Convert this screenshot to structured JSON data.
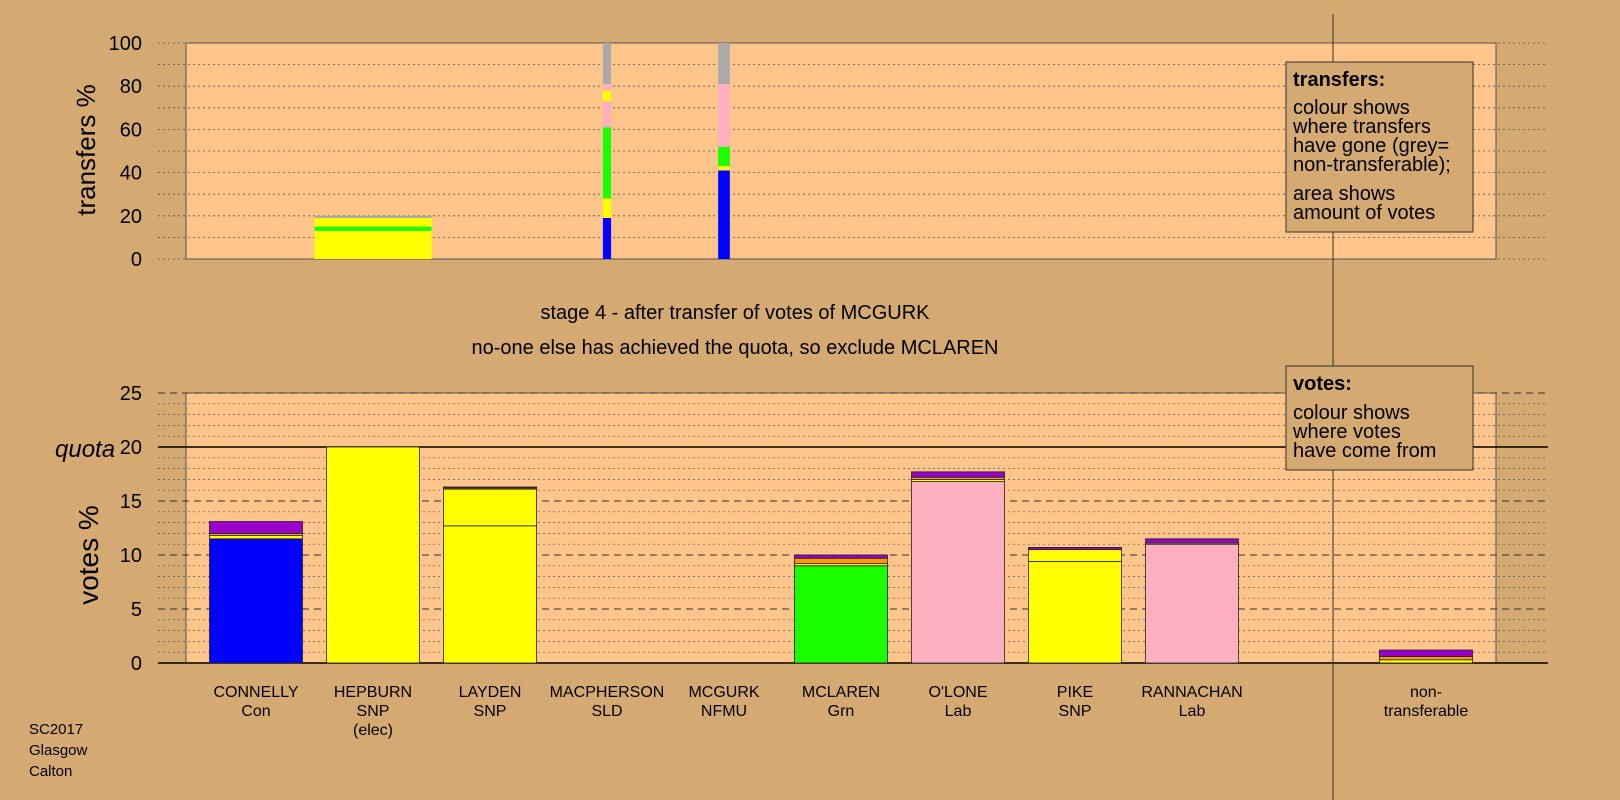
{
  "colors": {
    "background": "#d4a972",
    "plot_area": "#ffc58a",
    "Con": "#0000ff",
    "SNP": "#ffff00",
    "Grn": "#1aff00",
    "Lab": "#ffb0c0",
    "SLD": "#ff9900",
    "NFMU": "#9900cc",
    "nontransferable": "#aaaaaa"
  },
  "stage": {
    "line1": "stage 4 - after transfer of votes of MCGURK",
    "line2": "no-one else has achieved the quota, so exclude MCLAREN"
  },
  "transfer_box": {
    "title": "transfers:",
    "lines": [
      "colour shows",
      "where transfers",
      "have gone (grey=",
      "non-transferable);"
    ],
    "lines2": [
      "area shows",
      "amount of votes"
    ]
  },
  "votes_box": {
    "title": "votes:",
    "lines": [
      "colour shows",
      "where votes",
      "have come from"
    ]
  },
  "quota_label": "quota",
  "footer": [
    "SC2017",
    "Glasgow",
    "Calton"
  ],
  "chart_data": [
    {
      "type": "bar",
      "ylabel": "transfers %",
      "ylim": [
        0,
        100
      ],
      "yticks": [
        0,
        20,
        40,
        60,
        80,
        100
      ],
      "grid": true,
      "categories": [
        "CONNELLY",
        "HEPBURN",
        "LAYDEN",
        "MACPHERSON",
        "MCGURK",
        "MCLAREN",
        "O'LONE",
        "PIKE",
        "RANNACHAN"
      ],
      "transfers": [
        {
          "candidate": "HEPBURN",
          "width_share": 1.0,
          "segments": [
            {
              "to": "SNP",
              "from": 0,
              "to_value": 13
            },
            {
              "to": "Grn",
              "from": 13,
              "to_value": 15
            },
            {
              "to": "SNP",
              "from": 15,
              "to_value": 19
            },
            {
              "to": "nontransferable",
              "from": 19,
              "to_value": 20
            }
          ]
        },
        {
          "candidate": "MACPHERSON",
          "width_share": 0.07,
          "segments": [
            {
              "to": "Con",
              "from": 0,
              "to_value": 19
            },
            {
              "to": "SNP",
              "from": 19,
              "to_value": 28
            },
            {
              "to": "Grn",
              "from": 28,
              "to_value": 61
            },
            {
              "to": "Lab",
              "from": 61,
              "to_value": 73
            },
            {
              "to": "SNP",
              "from": 73,
              "to_value": 78
            },
            {
              "to": "Lab",
              "from": 78,
              "to_value": 81
            },
            {
              "to": "nontransferable",
              "from": 81,
              "to_value": 100
            }
          ]
        },
        {
          "candidate": "MCGURK",
          "width_share": 0.1,
          "segments": [
            {
              "to": "Con",
              "from": 0,
              "to_value": 41
            },
            {
              "to": "SNP",
              "from": 41,
              "to_value": 43
            },
            {
              "to": "Grn",
              "from": 43,
              "to_value": 52
            },
            {
              "to": "Lab",
              "from": 52,
              "to_value": 81
            },
            {
              "to": "nontransferable",
              "from": 81,
              "to_value": 100
            }
          ]
        }
      ]
    },
    {
      "type": "bar",
      "stacked": true,
      "ylabel": "votes %",
      "ylim": [
        0,
        25
      ],
      "yticks": [
        0,
        5,
        10,
        15,
        20,
        25
      ],
      "quota": 20,
      "grid": true,
      "categories": [
        {
          "name": "CONNELLY",
          "party": "Con",
          "note": ""
        },
        {
          "name": "HEPBURN",
          "party": "SNP",
          "note": "(elec)"
        },
        {
          "name": "LAYDEN",
          "party": "SNP",
          "note": ""
        },
        {
          "name": "MACPHERSON",
          "party": "SLD",
          "note": ""
        },
        {
          "name": "MCGURK",
          "party": "NFMU",
          "note": ""
        },
        {
          "name": "MCLAREN",
          "party": "Grn",
          "note": ""
        },
        {
          "name": "O'LONE",
          "party": "Lab",
          "note": ""
        },
        {
          "name": "PIKE",
          "party": "SNP",
          "note": ""
        },
        {
          "name": "RANNACHAN",
          "party": "Lab",
          "note": ""
        }
      ],
      "nontransferable_label": [
        "non-",
        "transferable"
      ],
      "stacks": [
        {
          "candidate": "CONNELLY",
          "segments": [
            {
              "from": "Con",
              "value": 11.5
            },
            {
              "from": "SNP",
              "value": 0.3
            },
            {
              "from": "SLD",
              "value": 0.2
            },
            {
              "from": "NFMU",
              "value": 1.1
            }
          ]
        },
        {
          "candidate": "HEPBURN",
          "segments": [
            {
              "from": "SNP",
              "value": 20.0
            }
          ]
        },
        {
          "candidate": "LAYDEN",
          "segments": [
            {
              "from": "SNP",
              "value": 12.7
            },
            {
              "from": "SNP",
              "value": 3.4
            },
            {
              "from": "SLD",
              "value": 0.1
            },
            {
              "from": "NFMU",
              "value": 0.1
            }
          ]
        },
        {
          "candidate": "MACPHERSON",
          "segments": []
        },
        {
          "candidate": "MCGURK",
          "segments": []
        },
        {
          "candidate": "MCLAREN",
          "segments": [
            {
              "from": "Grn",
              "value": 9.0
            },
            {
              "from": "SNP",
              "value": 0.2
            },
            {
              "from": "SLD",
              "value": 0.5
            },
            {
              "from": "NFMU",
              "value": 0.3
            }
          ]
        },
        {
          "candidate": "O'LONE",
          "segments": [
            {
              "from": "Lab",
              "value": 16.8
            },
            {
              "from": "SNP",
              "value": 0.2
            },
            {
              "from": "SLD",
              "value": 0.2
            },
            {
              "from": "NFMU",
              "value": 0.5
            }
          ]
        },
        {
          "candidate": "PIKE",
          "segments": [
            {
              "from": "SNP",
              "value": 9.4
            },
            {
              "from": "SNP",
              "value": 1.1
            },
            {
              "from": "NFMU",
              "value": 0.2
            }
          ]
        },
        {
          "candidate": "RANNACHAN",
          "segments": [
            {
              "from": "Lab",
              "value": 11.0
            },
            {
              "from": "SNP",
              "value": 0.1
            },
            {
              "from": "NFMU",
              "value": 0.4
            }
          ]
        },
        {
          "candidate": "non-transferable",
          "segments": [
            {
              "from": "SNP",
              "value": 0.3
            },
            {
              "from": "SLD",
              "value": 0.3
            },
            {
              "from": "NFMU",
              "value": 0.6
            }
          ]
        }
      ]
    }
  ]
}
